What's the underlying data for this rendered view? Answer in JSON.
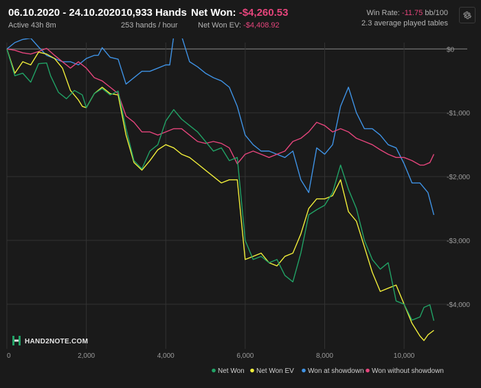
{
  "header": {
    "date_range": "06.10.2020 - 24.10.2020",
    "active_time": "Active 43h 8m",
    "hands": "10,933 Hands",
    "hands_rate": "253 hands / hour",
    "net_won_label": "Net Won:",
    "net_won_value": "-$4,260.53",
    "net_won_ev_label": "Net Won  EV:",
    "net_won_ev_value": "-$4,408.92",
    "win_rate_label": "Win Rate:",
    "win_rate_value": "-11.75",
    "win_rate_unit": "bb/100",
    "tables": "2.3 average played tables"
  },
  "logo": {
    "text": "HAND2NOTE.COM"
  },
  "icons": {
    "settings": "gear-icon",
    "logo": "hand2note-logo-icon"
  },
  "colors": {
    "background": "#1a1a1a",
    "grid": "#333333",
    "zero_line": "#8a8a8a",
    "net_won": "#21a366",
    "net_won_ev": "#f2ef3a",
    "won_at_showdown": "#3f93e6",
    "won_without_showdown": "#e6457c",
    "negative_text": "#e6457c"
  },
  "chart_data": {
    "type": "line",
    "xlim": [
      0,
      10933
    ],
    "ylim": [
      -4700,
      100
    ],
    "x_ticks": [
      0,
      2000,
      4000,
      6000,
      8000,
      10000
    ],
    "x_tick_labels": [
      "0",
      "2,000",
      "4,000",
      "6,000",
      "8,000",
      "10,000"
    ],
    "y_ticks": [
      0,
      -1000,
      -2000,
      -3000,
      -4000
    ],
    "y_tick_labels": [
      "$0",
      "-$1,000",
      "-$2,000",
      "-$3,000",
      "-$4,000"
    ],
    "grid": true,
    "legend_position": "bottom-right",
    "series": [
      {
        "name": "Net Won",
        "color": "#21a366",
        "points": [
          [
            0,
            0
          ],
          [
            200,
            -420
          ],
          [
            400,
            -380
          ],
          [
            600,
            -520
          ],
          [
            800,
            -230
          ],
          [
            1000,
            -220
          ],
          [
            1100,
            -420
          ],
          [
            1300,
            -680
          ],
          [
            1500,
            -780
          ],
          [
            1700,
            -650
          ],
          [
            1900,
            -720
          ],
          [
            2000,
            -920
          ],
          [
            2200,
            -700
          ],
          [
            2400,
            -620
          ],
          [
            2600,
            -720
          ],
          [
            2800,
            -660
          ],
          [
            3000,
            -1250
          ],
          [
            3200,
            -1750
          ],
          [
            3400,
            -1880
          ],
          [
            3600,
            -1600
          ],
          [
            3800,
            -1500
          ],
          [
            4000,
            -1130
          ],
          [
            4200,
            -950
          ],
          [
            4400,
            -1100
          ],
          [
            4600,
            -1200
          ],
          [
            4800,
            -1300
          ],
          [
            5000,
            -1450
          ],
          [
            5200,
            -1600
          ],
          [
            5400,
            -1550
          ],
          [
            5600,
            -1750
          ],
          [
            5800,
            -1700
          ],
          [
            6000,
            -3000
          ],
          [
            6200,
            -3300
          ],
          [
            6400,
            -3250
          ],
          [
            6600,
            -3350
          ],
          [
            6800,
            -3300
          ],
          [
            7000,
            -3550
          ],
          [
            7200,
            -3650
          ],
          [
            7400,
            -3200
          ],
          [
            7600,
            -2600
          ],
          [
            7800,
            -2520
          ],
          [
            8000,
            -2450
          ],
          [
            8200,
            -2250
          ],
          [
            8400,
            -1820
          ],
          [
            8600,
            -2200
          ],
          [
            8800,
            -2500
          ],
          [
            9000,
            -3000
          ],
          [
            9200,
            -3300
          ],
          [
            9400,
            -3450
          ],
          [
            9600,
            -3350
          ],
          [
            9800,
            -3950
          ],
          [
            10000,
            -4000
          ],
          [
            10200,
            -4250
          ],
          [
            10400,
            -4200
          ],
          [
            10500,
            -4050
          ],
          [
            10650,
            -4010
          ],
          [
            10750,
            -4260
          ]
        ]
      },
      {
        "name": "Net Won  EV",
        "color": "#f2ef3a",
        "points": [
          [
            0,
            0
          ],
          [
            200,
            -380
          ],
          [
            400,
            -200
          ],
          [
            600,
            -250
          ],
          [
            800,
            -50
          ],
          [
            1000,
            -80
          ],
          [
            1200,
            -150
          ],
          [
            1400,
            -300
          ],
          [
            1600,
            -650
          ],
          [
            1800,
            -800
          ],
          [
            1900,
            -900
          ],
          [
            2000,
            -920
          ],
          [
            2200,
            -700
          ],
          [
            2400,
            -600
          ],
          [
            2600,
            -700
          ],
          [
            2800,
            -720
          ],
          [
            3000,
            -1350
          ],
          [
            3200,
            -1780
          ],
          [
            3400,
            -1900
          ],
          [
            3600,
            -1750
          ],
          [
            3800,
            -1580
          ],
          [
            4000,
            -1500
          ],
          [
            4200,
            -1550
          ],
          [
            4400,
            -1650
          ],
          [
            4600,
            -1700
          ],
          [
            4800,
            -1800
          ],
          [
            5000,
            -1900
          ],
          [
            5200,
            -2000
          ],
          [
            5400,
            -2100
          ],
          [
            5600,
            -2050
          ],
          [
            5800,
            -2050
          ],
          [
            6000,
            -3300
          ],
          [
            6200,
            -3250
          ],
          [
            6400,
            -3200
          ],
          [
            6600,
            -3350
          ],
          [
            6800,
            -3400
          ],
          [
            7000,
            -3250
          ],
          [
            7200,
            -3200
          ],
          [
            7400,
            -2900
          ],
          [
            7600,
            -2500
          ],
          [
            7800,
            -2350
          ],
          [
            8000,
            -2350
          ],
          [
            8200,
            -2300
          ],
          [
            8400,
            -2050
          ],
          [
            8600,
            -2550
          ],
          [
            8800,
            -2700
          ],
          [
            9000,
            -3100
          ],
          [
            9200,
            -3500
          ],
          [
            9400,
            -3800
          ],
          [
            9600,
            -3750
          ],
          [
            9800,
            -3700
          ],
          [
            10000,
            -4000
          ],
          [
            10200,
            -4300
          ],
          [
            10400,
            -4500
          ],
          [
            10500,
            -4570
          ],
          [
            10600,
            -4480
          ],
          [
            10750,
            -4409
          ]
        ]
      },
      {
        "name": "Won at showdown",
        "color": "#3f93e6",
        "points": [
          [
            0,
            0
          ],
          [
            200,
            100
          ],
          [
            400,
            150
          ],
          [
            600,
            170
          ],
          [
            800,
            30
          ],
          [
            1000,
            -100
          ],
          [
            1200,
            -150
          ],
          [
            1400,
            -200
          ],
          [
            1600,
            -200
          ],
          [
            1800,
            -250
          ],
          [
            2000,
            -150
          ],
          [
            2200,
            -100
          ],
          [
            2300,
            -100
          ],
          [
            2400,
            20
          ],
          [
            2600,
            -130
          ],
          [
            2800,
            -160
          ],
          [
            3000,
            -550
          ],
          [
            3200,
            -450
          ],
          [
            3400,
            -350
          ],
          [
            3600,
            -350
          ],
          [
            3800,
            -300
          ],
          [
            4000,
            -250
          ],
          [
            4100,
            -250
          ],
          [
            4200,
            200
          ],
          [
            4400,
            200
          ],
          [
            4600,
            -200
          ],
          [
            4800,
            -280
          ],
          [
            5000,
            -380
          ],
          [
            5200,
            -450
          ],
          [
            5400,
            -500
          ],
          [
            5600,
            -600
          ],
          [
            5800,
            -900
          ],
          [
            6000,
            -1350
          ],
          [
            6200,
            -1500
          ],
          [
            6400,
            -1600
          ],
          [
            6600,
            -1600
          ],
          [
            6800,
            -1650
          ],
          [
            7000,
            -1700
          ],
          [
            7200,
            -1600
          ],
          [
            7400,
            -2050
          ],
          [
            7600,
            -2250
          ],
          [
            7800,
            -1550
          ],
          [
            8000,
            -1650
          ],
          [
            8200,
            -1500
          ],
          [
            8400,
            -900
          ],
          [
            8600,
            -600
          ],
          [
            8800,
            -1000
          ],
          [
            9000,
            -1250
          ],
          [
            9200,
            -1250
          ],
          [
            9400,
            -1350
          ],
          [
            9600,
            -1500
          ],
          [
            9800,
            -1550
          ],
          [
            10000,
            -1800
          ],
          [
            10200,
            -2100
          ],
          [
            10400,
            -2100
          ],
          [
            10600,
            -2250
          ],
          [
            10750,
            -2600
          ]
        ]
      },
      {
        "name": "Won without showdown",
        "color": "#e6457c",
        "points": [
          [
            0,
            0
          ],
          [
            200,
            -20
          ],
          [
            400,
            -60
          ],
          [
            600,
            -80
          ],
          [
            800,
            -40
          ],
          [
            1000,
            10
          ],
          [
            1200,
            -100
          ],
          [
            1400,
            -200
          ],
          [
            1600,
            -300
          ],
          [
            1800,
            -200
          ],
          [
            2000,
            -300
          ],
          [
            2200,
            -450
          ],
          [
            2400,
            -500
          ],
          [
            2600,
            -600
          ],
          [
            2800,
            -700
          ],
          [
            3000,
            -1050
          ],
          [
            3200,
            -1150
          ],
          [
            3400,
            -1300
          ],
          [
            3600,
            -1300
          ],
          [
            3800,
            -1350
          ],
          [
            4000,
            -1300
          ],
          [
            4200,
            -1250
          ],
          [
            4400,
            -1250
          ],
          [
            4600,
            -1350
          ],
          [
            4800,
            -1450
          ],
          [
            5000,
            -1480
          ],
          [
            5200,
            -1450
          ],
          [
            5400,
            -1480
          ],
          [
            5600,
            -1550
          ],
          [
            5800,
            -1800
          ],
          [
            6000,
            -1650
          ],
          [
            6200,
            -1600
          ],
          [
            6400,
            -1650
          ],
          [
            6600,
            -1700
          ],
          [
            6800,
            -1650
          ],
          [
            7000,
            -1600
          ],
          [
            7200,
            -1450
          ],
          [
            7400,
            -1400
          ],
          [
            7600,
            -1300
          ],
          [
            7800,
            -1150
          ],
          [
            8000,
            -1200
          ],
          [
            8200,
            -1300
          ],
          [
            8400,
            -1250
          ],
          [
            8600,
            -1300
          ],
          [
            8800,
            -1400
          ],
          [
            9000,
            -1450
          ],
          [
            9200,
            -1500
          ],
          [
            9400,
            -1580
          ],
          [
            9600,
            -1650
          ],
          [
            9800,
            -1700
          ],
          [
            10000,
            -1700
          ],
          [
            10200,
            -1750
          ],
          [
            10400,
            -1820
          ],
          [
            10500,
            -1820
          ],
          [
            10650,
            -1780
          ],
          [
            10750,
            -1650
          ]
        ]
      }
    ]
  }
}
